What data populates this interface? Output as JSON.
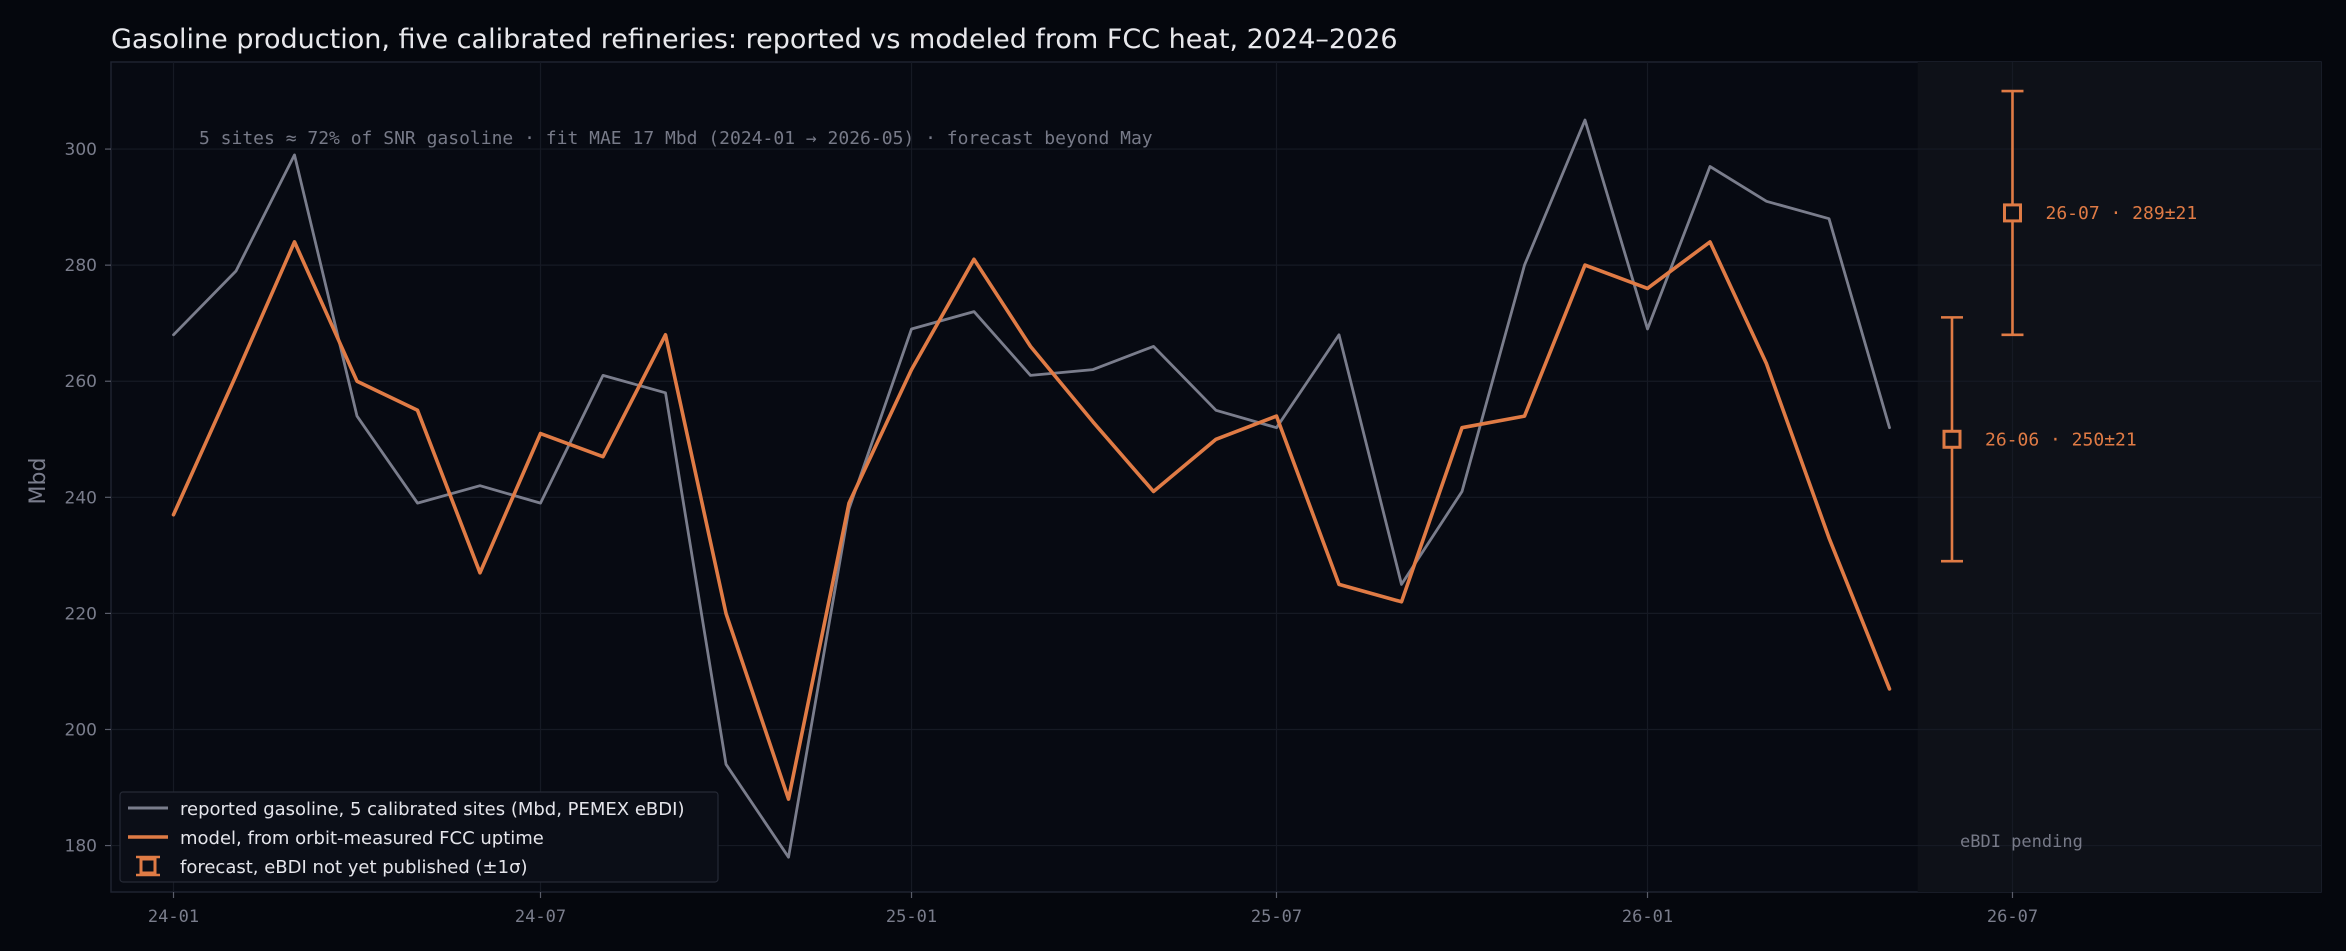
{
  "chart_data": {
    "type": "line",
    "title": "Gasoline production, five calibrated refineries: reported vs modeled from FCC heat, 2024–2026",
    "annotation": "5 sites ≈ 72% of SNR gasoline · fit MAE 17 Mbd (2024-01 → 2026-05) · forecast beyond May",
    "ylabel": "Mbd",
    "xlabel": "",
    "ylim": [
      172,
      315
    ],
    "yticks": [
      180,
      200,
      220,
      240,
      260,
      280,
      300
    ],
    "xlim": [
      "2023-12-01",
      "2026-12-01"
    ],
    "xticks": [
      {
        "date": "2024-01-01",
        "label": "24-01"
      },
      {
        "date": "2024-07-01",
        "label": "24-07"
      },
      {
        "date": "2025-01-01",
        "label": "25-01"
      },
      {
        "date": "2025-07-01",
        "label": "25-07"
      },
      {
        "date": "2026-01-01",
        "label": "26-01"
      },
      {
        "date": "2026-07-01",
        "label": "26-07"
      }
    ],
    "grid": true,
    "legend_position": "bottom-left",
    "x": [
      "2024-01",
      "2024-02",
      "2024-03",
      "2024-04",
      "2024-05",
      "2024-06",
      "2024-07",
      "2024-08",
      "2024-09",
      "2024-10",
      "2024-11",
      "2024-12",
      "2025-01",
      "2025-02",
      "2025-03",
      "2025-04",
      "2025-05",
      "2025-06",
      "2025-07",
      "2025-08",
      "2025-09",
      "2025-10",
      "2025-11",
      "2025-12",
      "2026-01",
      "2026-02",
      "2026-03",
      "2026-04",
      "2026-05"
    ],
    "series": [
      {
        "name": "reported gasoline, 5 calibrated sites (Mbd, PEMEX eBDI)",
        "color": "#7a7d8c",
        "values": [
          268,
          279,
          299,
          254,
          239,
          242,
          239,
          261,
          258,
          194,
          178,
          238,
          269,
          272,
          261,
          262,
          266,
          255,
          252,
          268,
          225,
          241,
          280,
          305,
          269,
          297,
          291,
          288,
          252
        ]
      },
      {
        "name": "model, from orbit-measured FCC uptime",
        "color": "#e07b45",
        "values": [
          237,
          261,
          284,
          260,
          255,
          227,
          251,
          247,
          268,
          220,
          188,
          239,
          262,
          281,
          266,
          253,
          241,
          250,
          254,
          225,
          222,
          252,
          254,
          280,
          276,
          284,
          263,
          233,
          207
        ]
      }
    ],
    "forecast": {
      "name": "forecast, eBDI not yet published (±1σ)",
      "color": "#e07b45",
      "points": [
        {
          "date": "2026-06-01",
          "value": 250,
          "sigma": 21,
          "label": "26-06 · 250±21"
        },
        {
          "date": "2026-07-01",
          "value": 289,
          "sigma": 21,
          "label": "26-07 · 289±21"
        }
      ],
      "shade_start": "2026-05-15",
      "shade_label": "eBDI pending"
    }
  }
}
